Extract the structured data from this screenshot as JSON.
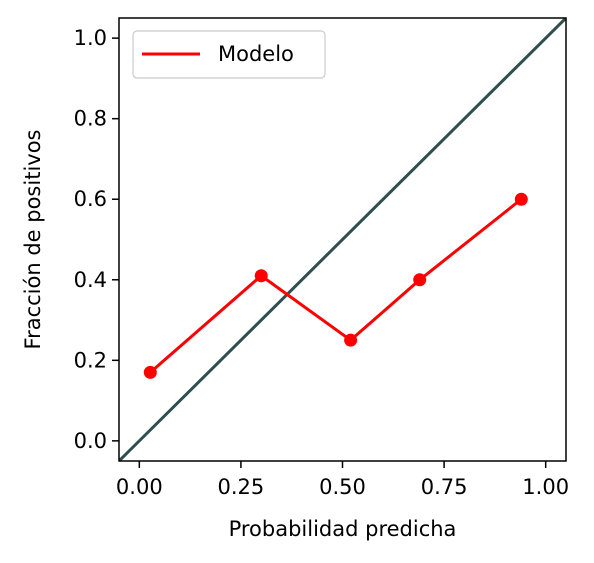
{
  "chart_data": {
    "type": "line",
    "title": "",
    "xlabel": "Probabilidad predicha",
    "ylabel": "Fracción de positivos",
    "xlim": [
      -0.05,
      1.05
    ],
    "ylim": [
      -0.05,
      1.05
    ],
    "xticks": [
      0.0,
      0.25,
      0.5,
      0.75,
      1.0
    ],
    "xtick_labels": [
      "0.00",
      "0.25",
      "0.50",
      "0.75",
      "1.00"
    ],
    "yticks": [
      0.0,
      0.2,
      0.4,
      0.6,
      0.8,
      1.0
    ],
    "ytick_labels": [
      "0.0",
      "0.2",
      "0.4",
      "0.6",
      "0.8",
      "1.0"
    ],
    "grid": false,
    "legend_position": "top-left",
    "series": [
      {
        "name": "Modelo",
        "color": "#ff0000",
        "marker": "circle",
        "x": [
          0.027,
          0.3,
          0.52,
          0.69,
          0.94
        ],
        "y": [
          0.17,
          0.41,
          0.25,
          0.4,
          0.6
        ]
      }
    ],
    "reference_line": {
      "color": "#2f4f4f",
      "x": [
        -0.05,
        1.05
      ],
      "y": [
        -0.05,
        1.05
      ]
    }
  }
}
